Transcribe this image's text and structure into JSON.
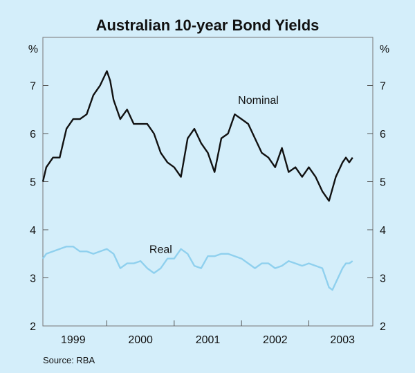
{
  "chart_data": {
    "type": "line",
    "title": "Australian 10-year Bond Yields",
    "ylabel_left": "%",
    "ylabel_right": "%",
    "ylim": [
      2,
      8
    ],
    "yticks": [
      2,
      3,
      4,
      5,
      6,
      7
    ],
    "xlim": [
      1998.55,
      2003.45
    ],
    "year_labels": [
      {
        "label": "1999",
        "center": 1999.0
      },
      {
        "label": "2000",
        "center": 2000.0
      },
      {
        "label": "2001",
        "center": 2001.0
      },
      {
        "label": "2002",
        "center": 2002.0
      },
      {
        "label": "2003",
        "center": 2003.0
      }
    ],
    "year_boundaries": [
      1999.5,
      2000.5,
      2001.5,
      2002.5
    ],
    "series": [
      {
        "name": "Nominal",
        "color": "#111111",
        "x": [
          1998.55,
          1998.6,
          1998.7,
          1998.8,
          1998.9,
          1999.0,
          1999.1,
          1999.2,
          1999.3,
          1999.4,
          1999.5,
          1999.55,
          1999.6,
          1999.7,
          1999.8,
          1999.9,
          2000.0,
          2000.1,
          2000.2,
          2000.3,
          2000.4,
          2000.5,
          2000.6,
          2000.7,
          2000.8,
          2000.9,
          2001.0,
          2001.1,
          2001.2,
          2001.3,
          2001.4,
          2001.5,
          2001.6,
          2001.7,
          2001.8,
          2001.9,
          2002.0,
          2002.1,
          2002.2,
          2002.3,
          2002.4,
          2002.5,
          2002.6,
          2002.7,
          2002.8,
          2002.9,
          2003.0,
          2003.05,
          2003.1,
          2003.15
        ],
        "values": [
          5.0,
          5.3,
          5.5,
          5.5,
          6.1,
          6.3,
          6.3,
          6.4,
          6.8,
          7.0,
          7.3,
          7.1,
          6.7,
          6.3,
          6.5,
          6.2,
          6.2,
          6.2,
          6.0,
          5.6,
          5.4,
          5.3,
          5.1,
          5.9,
          6.1,
          5.8,
          5.6,
          5.2,
          5.9,
          6.0,
          6.4,
          6.3,
          6.2,
          5.9,
          5.6,
          5.5,
          5.3,
          5.7,
          5.2,
          5.3,
          5.1,
          5.3,
          5.1,
          4.8,
          4.6,
          5.1,
          5.4,
          5.5,
          5.4,
          5.5
        ]
      },
      {
        "name": "Real",
        "color": "#8fd0ee",
        "x": [
          1998.55,
          1998.6,
          1998.7,
          1998.8,
          1998.9,
          1999.0,
          1999.1,
          1999.2,
          1999.3,
          1999.4,
          1999.5,
          1999.6,
          1999.7,
          1999.8,
          1999.9,
          2000.0,
          2000.1,
          2000.2,
          2000.3,
          2000.4,
          2000.5,
          2000.6,
          2000.7,
          2000.8,
          2000.9,
          2001.0,
          2001.1,
          2001.2,
          2001.3,
          2001.4,
          2001.5,
          2001.6,
          2001.7,
          2001.8,
          2001.9,
          2002.0,
          2002.1,
          2002.2,
          2002.3,
          2002.4,
          2002.5,
          2002.6,
          2002.7,
          2002.8,
          2002.85,
          2002.9,
          2003.0,
          2003.05,
          2003.1,
          2003.15
        ],
        "values": [
          3.4,
          3.5,
          3.55,
          3.6,
          3.65,
          3.65,
          3.55,
          3.55,
          3.5,
          3.55,
          3.6,
          3.5,
          3.2,
          3.3,
          3.3,
          3.35,
          3.2,
          3.1,
          3.2,
          3.4,
          3.4,
          3.6,
          3.5,
          3.25,
          3.2,
          3.45,
          3.45,
          3.5,
          3.5,
          3.45,
          3.4,
          3.3,
          3.2,
          3.3,
          3.3,
          3.2,
          3.25,
          3.35,
          3.3,
          3.25,
          3.3,
          3.25,
          3.2,
          2.8,
          2.75,
          2.9,
          3.2,
          3.3,
          3.3,
          3.35
        ]
      }
    ],
    "series_labels": [
      {
        "text": "Nominal",
        "x": 2001.75,
        "y": 6.62
      },
      {
        "text": "Real",
        "x": 2000.3,
        "y": 3.52
      }
    ]
  },
  "source": "Source: RBA"
}
